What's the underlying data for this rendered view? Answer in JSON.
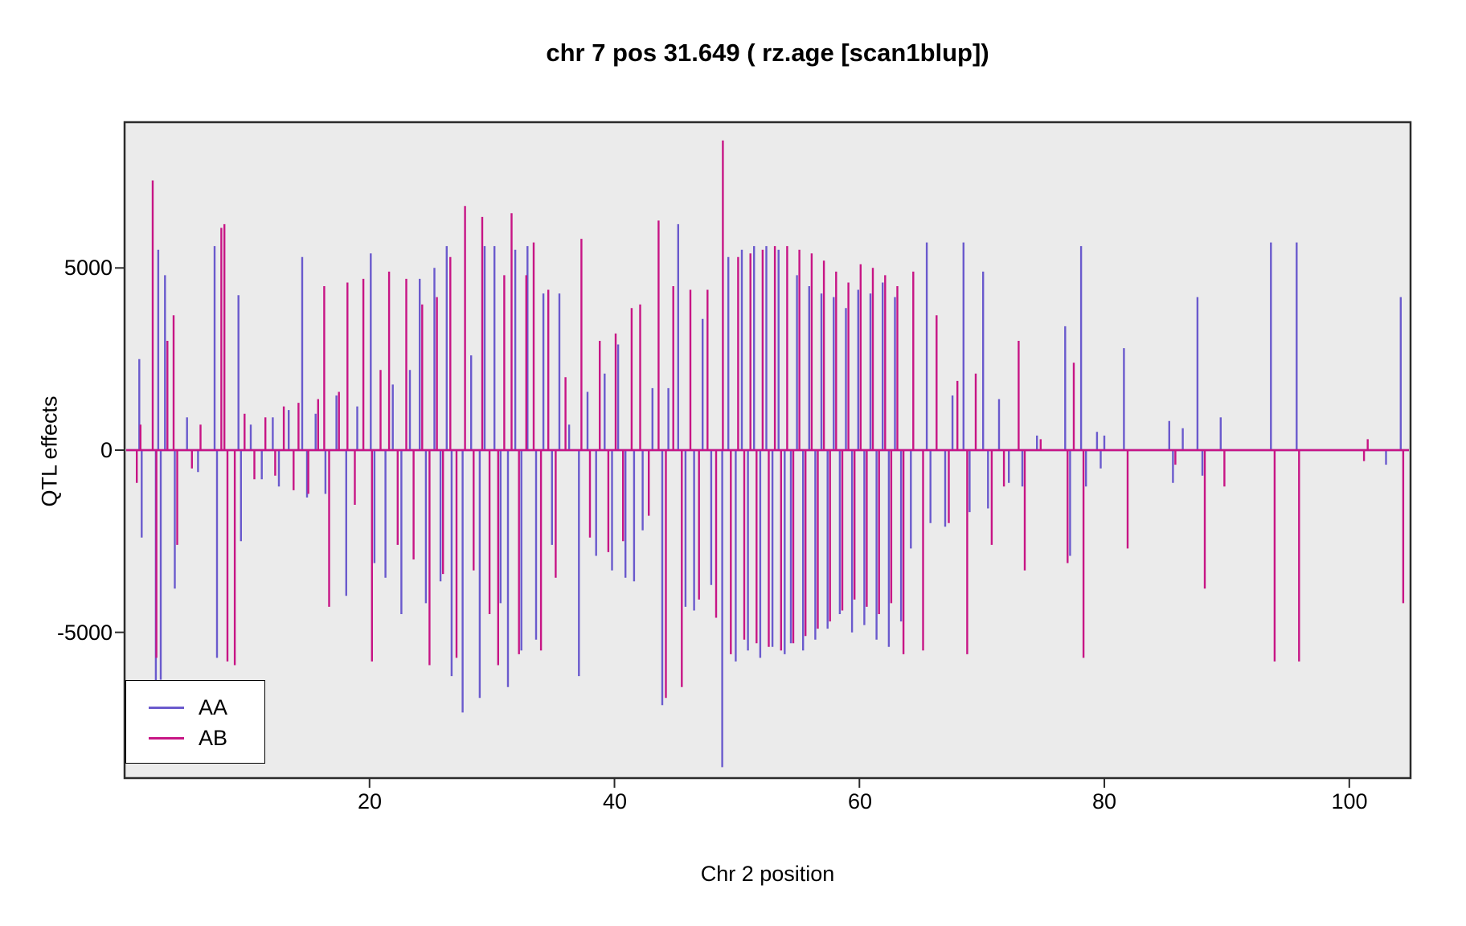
{
  "title": "chr 7 pos 31.649 ( rz.age  [scan1blup])",
  "chart_data": {
    "type": "line",
    "subtype": "qtl-effect-spikes",
    "title": "chr 7 pos 31.649 ( rz.age  [scan1blup])",
    "xlabel": "Chr 2 position",
    "ylabel": "QTL effects",
    "xlim": [
      0,
      105
    ],
    "ylim": [
      -9000,
      9000
    ],
    "xticks": [
      20,
      40,
      60,
      80,
      100
    ],
    "xtick_labels": [
      "20",
      "40",
      "60",
      "80",
      "100"
    ],
    "yticks": [
      5000,
      0,
      -5000
    ],
    "ytick_labels": [
      "5000",
      "0",
      "-5000"
    ],
    "panel_bg": "#ebebeb",
    "border_color": "#2b2b2b",
    "grid": false,
    "baseline": 0,
    "legend": {
      "position": "bottom-left",
      "entries": [
        {
          "label": "AA",
          "color": "#6a5acd"
        },
        {
          "label": "AB",
          "color": "#c71585"
        }
      ]
    },
    "series": [
      {
        "name": "AA",
        "color": "#6a5acd",
        "style": "spikes",
        "points": [
          [
            1.2,
            2500
          ],
          [
            1.4,
            -2400
          ],
          [
            2.55,
            -6800
          ],
          [
            2.75,
            5500
          ],
          [
            2.95,
            -6300
          ],
          [
            3.3,
            4800
          ],
          [
            4.1,
            -3800
          ],
          [
            5.1,
            900
          ],
          [
            6.0,
            -600
          ],
          [
            7.35,
            5600
          ],
          [
            7.55,
            -5700
          ],
          [
            9.3,
            4250
          ],
          [
            9.5,
            -2500
          ],
          [
            10.3,
            700
          ],
          [
            11.2,
            -800
          ],
          [
            12.1,
            900
          ],
          [
            12.6,
            -1000
          ],
          [
            13.4,
            1100
          ],
          [
            14.5,
            5300
          ],
          [
            14.9,
            -1300
          ],
          [
            15.6,
            1000
          ],
          [
            16.4,
            -1200
          ],
          [
            17.3,
            1500
          ],
          [
            18.1,
            -4000
          ],
          [
            19.0,
            1200
          ],
          [
            20.1,
            5400
          ],
          [
            20.4,
            -3100
          ],
          [
            21.3,
            -3500
          ],
          [
            21.9,
            1800
          ],
          [
            22.6,
            -4500
          ],
          [
            23.3,
            2200
          ],
          [
            24.1,
            4700
          ],
          [
            24.6,
            -4200
          ],
          [
            25.3,
            5000
          ],
          [
            25.8,
            -3600
          ],
          [
            26.3,
            5600
          ],
          [
            26.7,
            -6200
          ],
          [
            27.6,
            -7200
          ],
          [
            28.3,
            2600
          ],
          [
            29.0,
            -6800
          ],
          [
            29.4,
            5600
          ],
          [
            30.2,
            5600
          ],
          [
            30.7,
            -4200
          ],
          [
            31.3,
            -6500
          ],
          [
            31.9,
            5500
          ],
          [
            32.4,
            -5500
          ],
          [
            32.9,
            5600
          ],
          [
            33.6,
            -5200
          ],
          [
            34.2,
            4300
          ],
          [
            34.9,
            -2600
          ],
          [
            35.5,
            4300
          ],
          [
            36.3,
            700
          ],
          [
            37.1,
            -6200
          ],
          [
            37.8,
            1600
          ],
          [
            38.5,
            -2900
          ],
          [
            39.2,
            2100
          ],
          [
            39.8,
            -3300
          ],
          [
            40.3,
            2900
          ],
          [
            40.9,
            -3500
          ],
          [
            41.6,
            -3600
          ],
          [
            42.3,
            -2200
          ],
          [
            43.1,
            1700
          ],
          [
            43.9,
            -7000
          ],
          [
            44.4,
            1700
          ],
          [
            45.2,
            6200
          ],
          [
            45.8,
            -4300
          ],
          [
            46.5,
            -4400
          ],
          [
            47.2,
            3600
          ],
          [
            47.9,
            -3700
          ],
          [
            48.8,
            -8700
          ],
          [
            49.3,
            5300
          ],
          [
            49.9,
            -5800
          ],
          [
            50.4,
            5500
          ],
          [
            50.9,
            -5500
          ],
          [
            51.4,
            5600
          ],
          [
            51.9,
            -5700
          ],
          [
            52.4,
            5600
          ],
          [
            52.9,
            -5400
          ],
          [
            53.4,
            5500
          ],
          [
            53.9,
            -5600
          ],
          [
            54.4,
            -5300
          ],
          [
            54.9,
            4800
          ],
          [
            55.4,
            -5500
          ],
          [
            55.9,
            4500
          ],
          [
            56.4,
            -5200
          ],
          [
            56.9,
            4300
          ],
          [
            57.4,
            -4900
          ],
          [
            57.9,
            4200
          ],
          [
            58.4,
            -4500
          ],
          [
            58.9,
            3900
          ],
          [
            59.4,
            -5000
          ],
          [
            59.9,
            4400
          ],
          [
            60.4,
            -4800
          ],
          [
            60.9,
            4300
          ],
          [
            61.4,
            -5200
          ],
          [
            61.9,
            4600
          ],
          [
            62.4,
            -5400
          ],
          [
            62.9,
            4200
          ],
          [
            63.4,
            -4700
          ],
          [
            64.2,
            -2700
          ],
          [
            65.5,
            5700
          ],
          [
            65.8,
            -2000
          ],
          [
            67.0,
            -2100
          ],
          [
            67.6,
            1500
          ],
          [
            68.5,
            5700
          ],
          [
            69.0,
            -1700
          ],
          [
            70.1,
            4900
          ],
          [
            70.5,
            -1600
          ],
          [
            71.4,
            1400
          ],
          [
            72.2,
            -900
          ],
          [
            73.3,
            -1000
          ],
          [
            74.5,
            400
          ],
          [
            76.8,
            3400
          ],
          [
            77.2,
            -2900
          ],
          [
            78.1,
            5600
          ],
          [
            78.5,
            -1000
          ],
          [
            79.4,
            500
          ],
          [
            79.7,
            -500
          ],
          [
            80.0,
            400
          ],
          [
            81.6,
            2800
          ],
          [
            85.3,
            800
          ],
          [
            85.6,
            -900
          ],
          [
            86.4,
            600
          ],
          [
            87.6,
            4200
          ],
          [
            88.0,
            -700
          ],
          [
            89.5,
            900
          ],
          [
            93.6,
            5700
          ],
          [
            95.7,
            5700
          ],
          [
            103.0,
            -400
          ],
          [
            104.2,
            4200
          ]
        ]
      },
      {
        "name": "AB",
        "color": "#c71585",
        "style": "spikes",
        "points": [
          [
            1.0,
            -900
          ],
          [
            1.3,
            700
          ],
          [
            2.3,
            7400
          ],
          [
            2.6,
            -5700
          ],
          [
            3.5,
            3000
          ],
          [
            4.0,
            3700
          ],
          [
            4.3,
            -2600
          ],
          [
            5.5,
            -500
          ],
          [
            6.2,
            700
          ],
          [
            7.9,
            6100
          ],
          [
            8.15,
            6200
          ],
          [
            8.4,
            -5800
          ],
          [
            9.0,
            -5900
          ],
          [
            9.8,
            1000
          ],
          [
            10.6,
            -800
          ],
          [
            11.5,
            900
          ],
          [
            12.3,
            -700
          ],
          [
            13.0,
            1200
          ],
          [
            13.8,
            -1100
          ],
          [
            14.2,
            1300
          ],
          [
            15.0,
            -1200
          ],
          [
            15.8,
            1400
          ],
          [
            16.3,
            4500
          ],
          [
            16.7,
            -4300
          ],
          [
            17.5,
            1600
          ],
          [
            18.2,
            4600
          ],
          [
            18.8,
            -1500
          ],
          [
            19.5,
            4700
          ],
          [
            20.2,
            -5800
          ],
          [
            20.9,
            2200
          ],
          [
            21.6,
            4900
          ],
          [
            22.3,
            -2600
          ],
          [
            23.0,
            4700
          ],
          [
            23.6,
            -3000
          ],
          [
            24.3,
            4000
          ],
          [
            24.9,
            -5900
          ],
          [
            25.5,
            4200
          ],
          [
            26.0,
            -3400
          ],
          [
            26.6,
            5300
          ],
          [
            27.1,
            -5700
          ],
          [
            27.8,
            6700
          ],
          [
            28.5,
            -3300
          ],
          [
            29.2,
            6400
          ],
          [
            29.8,
            -4500
          ],
          [
            30.5,
            -5900
          ],
          [
            31.0,
            4800
          ],
          [
            31.6,
            6500
          ],
          [
            32.2,
            -5600
          ],
          [
            32.8,
            4800
          ],
          [
            33.4,
            5700
          ],
          [
            34.0,
            -5500
          ],
          [
            34.6,
            4400
          ],
          [
            35.2,
            -3500
          ],
          [
            36.0,
            2000
          ],
          [
            37.3,
            5800
          ],
          [
            38.0,
            -2400
          ],
          [
            38.8,
            3000
          ],
          [
            39.5,
            -2800
          ],
          [
            40.1,
            3200
          ],
          [
            40.7,
            -2500
          ],
          [
            41.4,
            3900
          ],
          [
            42.1,
            4000
          ],
          [
            42.8,
            -1800
          ],
          [
            43.6,
            6300
          ],
          [
            44.2,
            -6800
          ],
          [
            44.8,
            4500
          ],
          [
            45.5,
            -6500
          ],
          [
            46.2,
            4400
          ],
          [
            46.9,
            -4100
          ],
          [
            47.6,
            4400
          ],
          [
            48.3,
            -4600
          ],
          [
            48.85,
            8500
          ],
          [
            49.5,
            -5600
          ],
          [
            50.1,
            5300
          ],
          [
            50.6,
            -5200
          ],
          [
            51.1,
            5400
          ],
          [
            51.6,
            -5300
          ],
          [
            52.1,
            5500
          ],
          [
            52.6,
            -5400
          ],
          [
            53.1,
            5600
          ],
          [
            53.6,
            -5500
          ],
          [
            54.1,
            5600
          ],
          [
            54.6,
            -5300
          ],
          [
            55.1,
            5500
          ],
          [
            55.6,
            -5100
          ],
          [
            56.1,
            5400
          ],
          [
            56.6,
            -4900
          ],
          [
            57.1,
            5200
          ],
          [
            57.6,
            -4700
          ],
          [
            58.1,
            4900
          ],
          [
            58.6,
            -4400
          ],
          [
            59.1,
            4600
          ],
          [
            59.6,
            -4100
          ],
          [
            60.1,
            5100
          ],
          [
            60.6,
            -4300
          ],
          [
            61.1,
            5000
          ],
          [
            61.6,
            -4500
          ],
          [
            62.1,
            4800
          ],
          [
            62.6,
            -4200
          ],
          [
            63.1,
            4500
          ],
          [
            63.6,
            -5600
          ],
          [
            64.4,
            4900
          ],
          [
            65.2,
            -5500
          ],
          [
            66.3,
            3700
          ],
          [
            67.3,
            -2000
          ],
          [
            68.0,
            1900
          ],
          [
            68.8,
            -5600
          ],
          [
            69.5,
            2100
          ],
          [
            70.8,
            -2600
          ],
          [
            71.8,
            -1000
          ],
          [
            73.0,
            3000
          ],
          [
            73.5,
            -3300
          ],
          [
            74.8,
            300
          ],
          [
            77.0,
            -3100
          ],
          [
            77.5,
            2400
          ],
          [
            78.3,
            -5700
          ],
          [
            81.9,
            -2700
          ],
          [
            85.8,
            -400
          ],
          [
            88.2,
            -3800
          ],
          [
            89.8,
            -1000
          ],
          [
            93.9,
            -5800
          ],
          [
            95.9,
            -5800
          ],
          [
            101.2,
            -300
          ],
          [
            101.5,
            300
          ],
          [
            104.4,
            -4200
          ]
        ]
      }
    ]
  }
}
